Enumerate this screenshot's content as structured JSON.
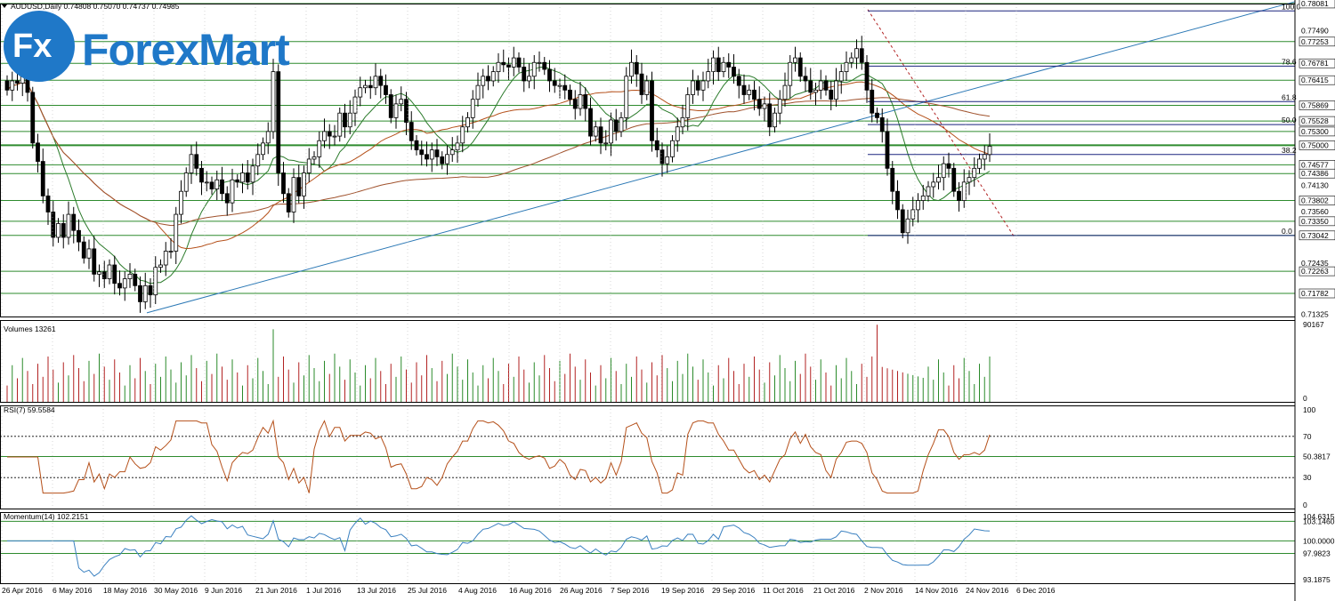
{
  "header": {
    "symbol_line": "AUDUSD,Daily  0.74808 0.75070 0.74737 0.74985"
  },
  "logo": {
    "text": "ForexMart",
    "fx": "Fx"
  },
  "colors": {
    "bull": "#2a8a2a",
    "bear": "#000000",
    "ma_fast": "#2a7a2a",
    "ma_slow": "#b5501a",
    "ma_long": "#a0522d",
    "trend": "#2b78b5",
    "grid": "#2e8b2e",
    "fib": "#1a237e",
    "rsi": "#b5501a",
    "mom": "#3a80c0",
    "vol_up": "#2a8a2a",
    "vol_down": "#b22222"
  },
  "fibonacci": [
    {
      "label": "100.0",
      "price": 0.7792
    },
    {
      "label": "78.6",
      "price": 0.7672
    },
    {
      "label": "61.8",
      "price": 0.7595
    },
    {
      "label": "50.0",
      "price": 0.7545
    },
    {
      "label": "38.2",
      "price": 0.748
    },
    {
      "label": "0.0",
      "price": 0.7304
    }
  ],
  "chart_data": [
    {
      "type": "candlestick",
      "title": "AUDUSD,Daily  0.74808 0.75070 0.74737 0.74985",
      "ylim": [
        0.7128,
        0.7808
      ],
      "x_tick_labels": [
        "26 Apr 2016",
        "6 May 2016",
        "18 May 2016",
        "30 May 2016",
        "9 Jun 2016",
        "21 Jun 2016",
        "1 Jul 2016",
        "13 Jul 2016",
        "25 Jul 2016",
        "4 Aug 2016",
        "16 Aug 2016",
        "26 Aug 2016",
        "7 Sep 2016",
        "19 Sep 2016",
        "29 Sep 2016",
        "11 Oct 2016",
        "21 Oct 2016",
        "2 Nov 2016",
        "14 Nov 2016",
        "24 Nov 2016",
        "6 Dec 2016"
      ],
      "y_tick_labels": [
        {
          "text": "0.78081",
          "boxed": true
        },
        {
          "text": "0.77490",
          "boxed": false
        },
        {
          "text": "0.77253",
          "boxed": true
        },
        {
          "text": "0.76781",
          "boxed": true
        },
        {
          "text": "0.76415",
          "boxed": true
        },
        {
          "text": "0.75869",
          "boxed": true
        },
        {
          "text": "0.75528",
          "boxed": true
        },
        {
          "text": "0.75300",
          "boxed": true
        },
        {
          "text": "0.75000",
          "boxed": true
        },
        {
          "text": "0.74577",
          "boxed": true
        },
        {
          "text": "0.74386",
          "boxed": true
        },
        {
          "text": "0.74130",
          "boxed": false
        },
        {
          "text": "0.73802",
          "boxed": true
        },
        {
          "text": "0.73560",
          "boxed": false
        },
        {
          "text": "0.73350",
          "boxed": true
        },
        {
          "text": "0.73042",
          "boxed": true
        },
        {
          "text": "0.72435",
          "boxed": false
        },
        {
          "text": "0.72263",
          "boxed": true
        },
        {
          "text": "0.71782",
          "boxed": true
        },
        {
          "text": "0.71325",
          "boxed": false
        }
      ],
      "horizontal_levels": [
        0.78081,
        0.77253,
        0.76781,
        0.76415,
        0.75869,
        0.75528,
        0.753,
        0.75,
        0.74577,
        0.74386,
        0.73802,
        0.7335,
        0.73042,
        0.72263,
        0.71782
      ],
      "candles_close": [
        0.762,
        0.764,
        0.7635,
        0.7655,
        0.7615,
        0.7505,
        0.7465,
        0.739,
        0.7355,
        0.73,
        0.733,
        0.73,
        0.735,
        0.7315,
        0.729,
        0.7255,
        0.7275,
        0.722,
        0.7225,
        0.721,
        0.724,
        0.72,
        0.719,
        0.721,
        0.722,
        0.7195,
        0.716,
        0.7195,
        0.7175,
        0.7235,
        0.724,
        0.727,
        0.727,
        0.735,
        0.74,
        0.744,
        0.748,
        0.745,
        0.742,
        0.742,
        0.7405,
        0.7425,
        0.7395,
        0.7375,
        0.7425,
        0.742,
        0.744,
        0.742,
        0.7455,
        0.748,
        0.7505,
        0.753,
        0.766,
        0.744,
        0.7395,
        0.7355,
        0.743,
        0.739,
        0.744,
        0.747,
        0.7475,
        0.751,
        0.753,
        0.752,
        0.752,
        0.757,
        0.754,
        0.757,
        0.7605,
        0.7625,
        0.763,
        0.7625,
        0.765,
        0.763,
        0.761,
        0.756,
        0.759,
        0.76,
        0.755,
        0.751,
        0.749,
        0.748,
        0.747,
        0.749,
        0.7475,
        0.746,
        0.748,
        0.749,
        0.7505,
        0.754,
        0.756,
        0.76,
        0.763,
        0.765,
        0.764,
        0.766,
        0.768,
        0.7675,
        0.767,
        0.769,
        0.767,
        0.764,
        0.765,
        0.768,
        0.768,
        0.7665,
        0.764,
        0.763,
        0.763,
        0.762,
        0.76,
        0.758,
        0.761,
        0.758,
        0.752,
        0.754,
        0.7505,
        0.7505,
        0.7555,
        0.753,
        0.756,
        0.765,
        0.768,
        0.7655,
        0.761,
        0.764,
        0.751,
        0.749,
        0.746,
        0.7475,
        0.751,
        0.754,
        0.756,
        0.761,
        0.764,
        0.762,
        0.764,
        0.766,
        0.769,
        0.766,
        0.768,
        0.767,
        0.765,
        0.763,
        0.761,
        0.762,
        0.76,
        0.758,
        0.759,
        0.754,
        0.757,
        0.76,
        0.763,
        0.768,
        0.769,
        0.765,
        0.764,
        0.7615,
        0.762,
        0.764,
        0.762,
        0.76,
        0.764,
        0.766,
        0.768,
        0.769,
        0.771,
        0.768,
        0.762,
        0.757,
        0.756,
        0.753,
        0.745,
        0.74,
        0.736,
        0.731,
        0.734,
        0.736,
        0.738,
        0.739,
        0.741,
        0.742,
        0.743,
        0.746,
        0.745,
        0.74,
        0.738,
        0.742,
        0.743,
        0.745,
        0.747,
        0.748,
        0.7498
      ]
    },
    {
      "type": "bar",
      "title": "Volumes 13261",
      "ylim": [
        0,
        90167
      ],
      "y_tick_labels": [
        "90167",
        "0"
      ]
    },
    {
      "type": "line",
      "title": "RSI(7) 59.5584",
      "ylim": [
        0,
        100
      ],
      "y_tick_labels": [
        "100",
        "70",
        "50.3817",
        "30",
        "0"
      ],
      "levels": [
        70,
        30
      ]
    },
    {
      "type": "line",
      "title": "Momentum(14) 102.2151",
      "ylim": [
        93.1875,
        104.6315
      ],
      "y_tick_labels": [
        "104.6315",
        "103.1460",
        "100.0000",
        "97.9823",
        "93.1875"
      ]
    }
  ]
}
